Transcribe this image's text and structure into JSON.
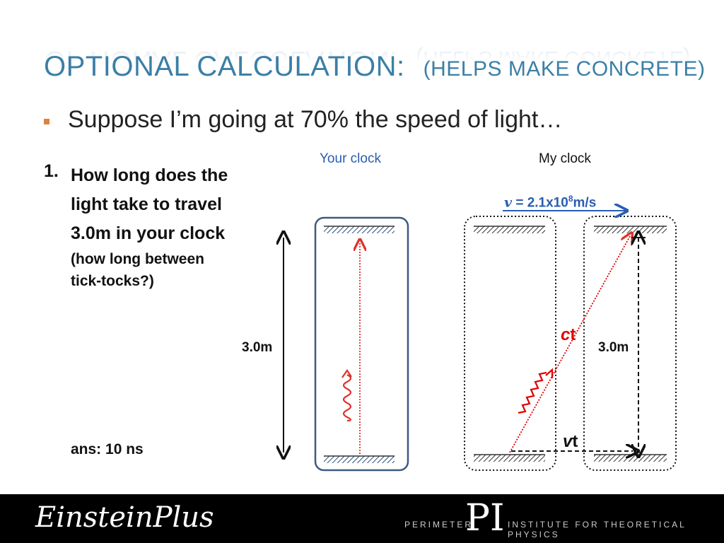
{
  "slide": {
    "title_main": "OPTIONAL CALCULATION:",
    "title_sub": "(HELPS MAKE CONCRETE)",
    "bullet": "Suppose I’m going at 70% the speed of light…",
    "question_number": "1.",
    "question_lines": [
      "How long does the",
      "light take to travel",
      "3.0m in your clock"
    ],
    "question_sub_lines": [
      "(how long between",
      "tick-tocks?)"
    ],
    "answer": "ans: 10 ns"
  },
  "diagram": {
    "your_clock_label": "Your clock",
    "my_clock_label": "My clock",
    "velocity_symbol": "v",
    "velocity_value": " = 2.1x10",
    "velocity_exponent": "8",
    "velocity_unit": "m/s",
    "height_label_left": "3.0m",
    "height_label_right": "3.0m",
    "ct_c": "c",
    "ct_t": "t",
    "vt_v": "v",
    "vt_t": "t"
  },
  "footer": {
    "left_logo": "EinsteinPlus",
    "right_text_left": "PERIMETER",
    "right_mark": "PI",
    "right_text_right": "INSTITUTE FOR THEORETICAL PHYSICS"
  },
  "colors": {
    "title": "#3b7fa6",
    "bullet": "#e0823a",
    "your_clock_label": "#2a5db0",
    "light_path": "#e0302a",
    "light_path_moving": "#e00000",
    "velocity_arrow": "#2a5db0",
    "footer_bg": "#000000"
  }
}
